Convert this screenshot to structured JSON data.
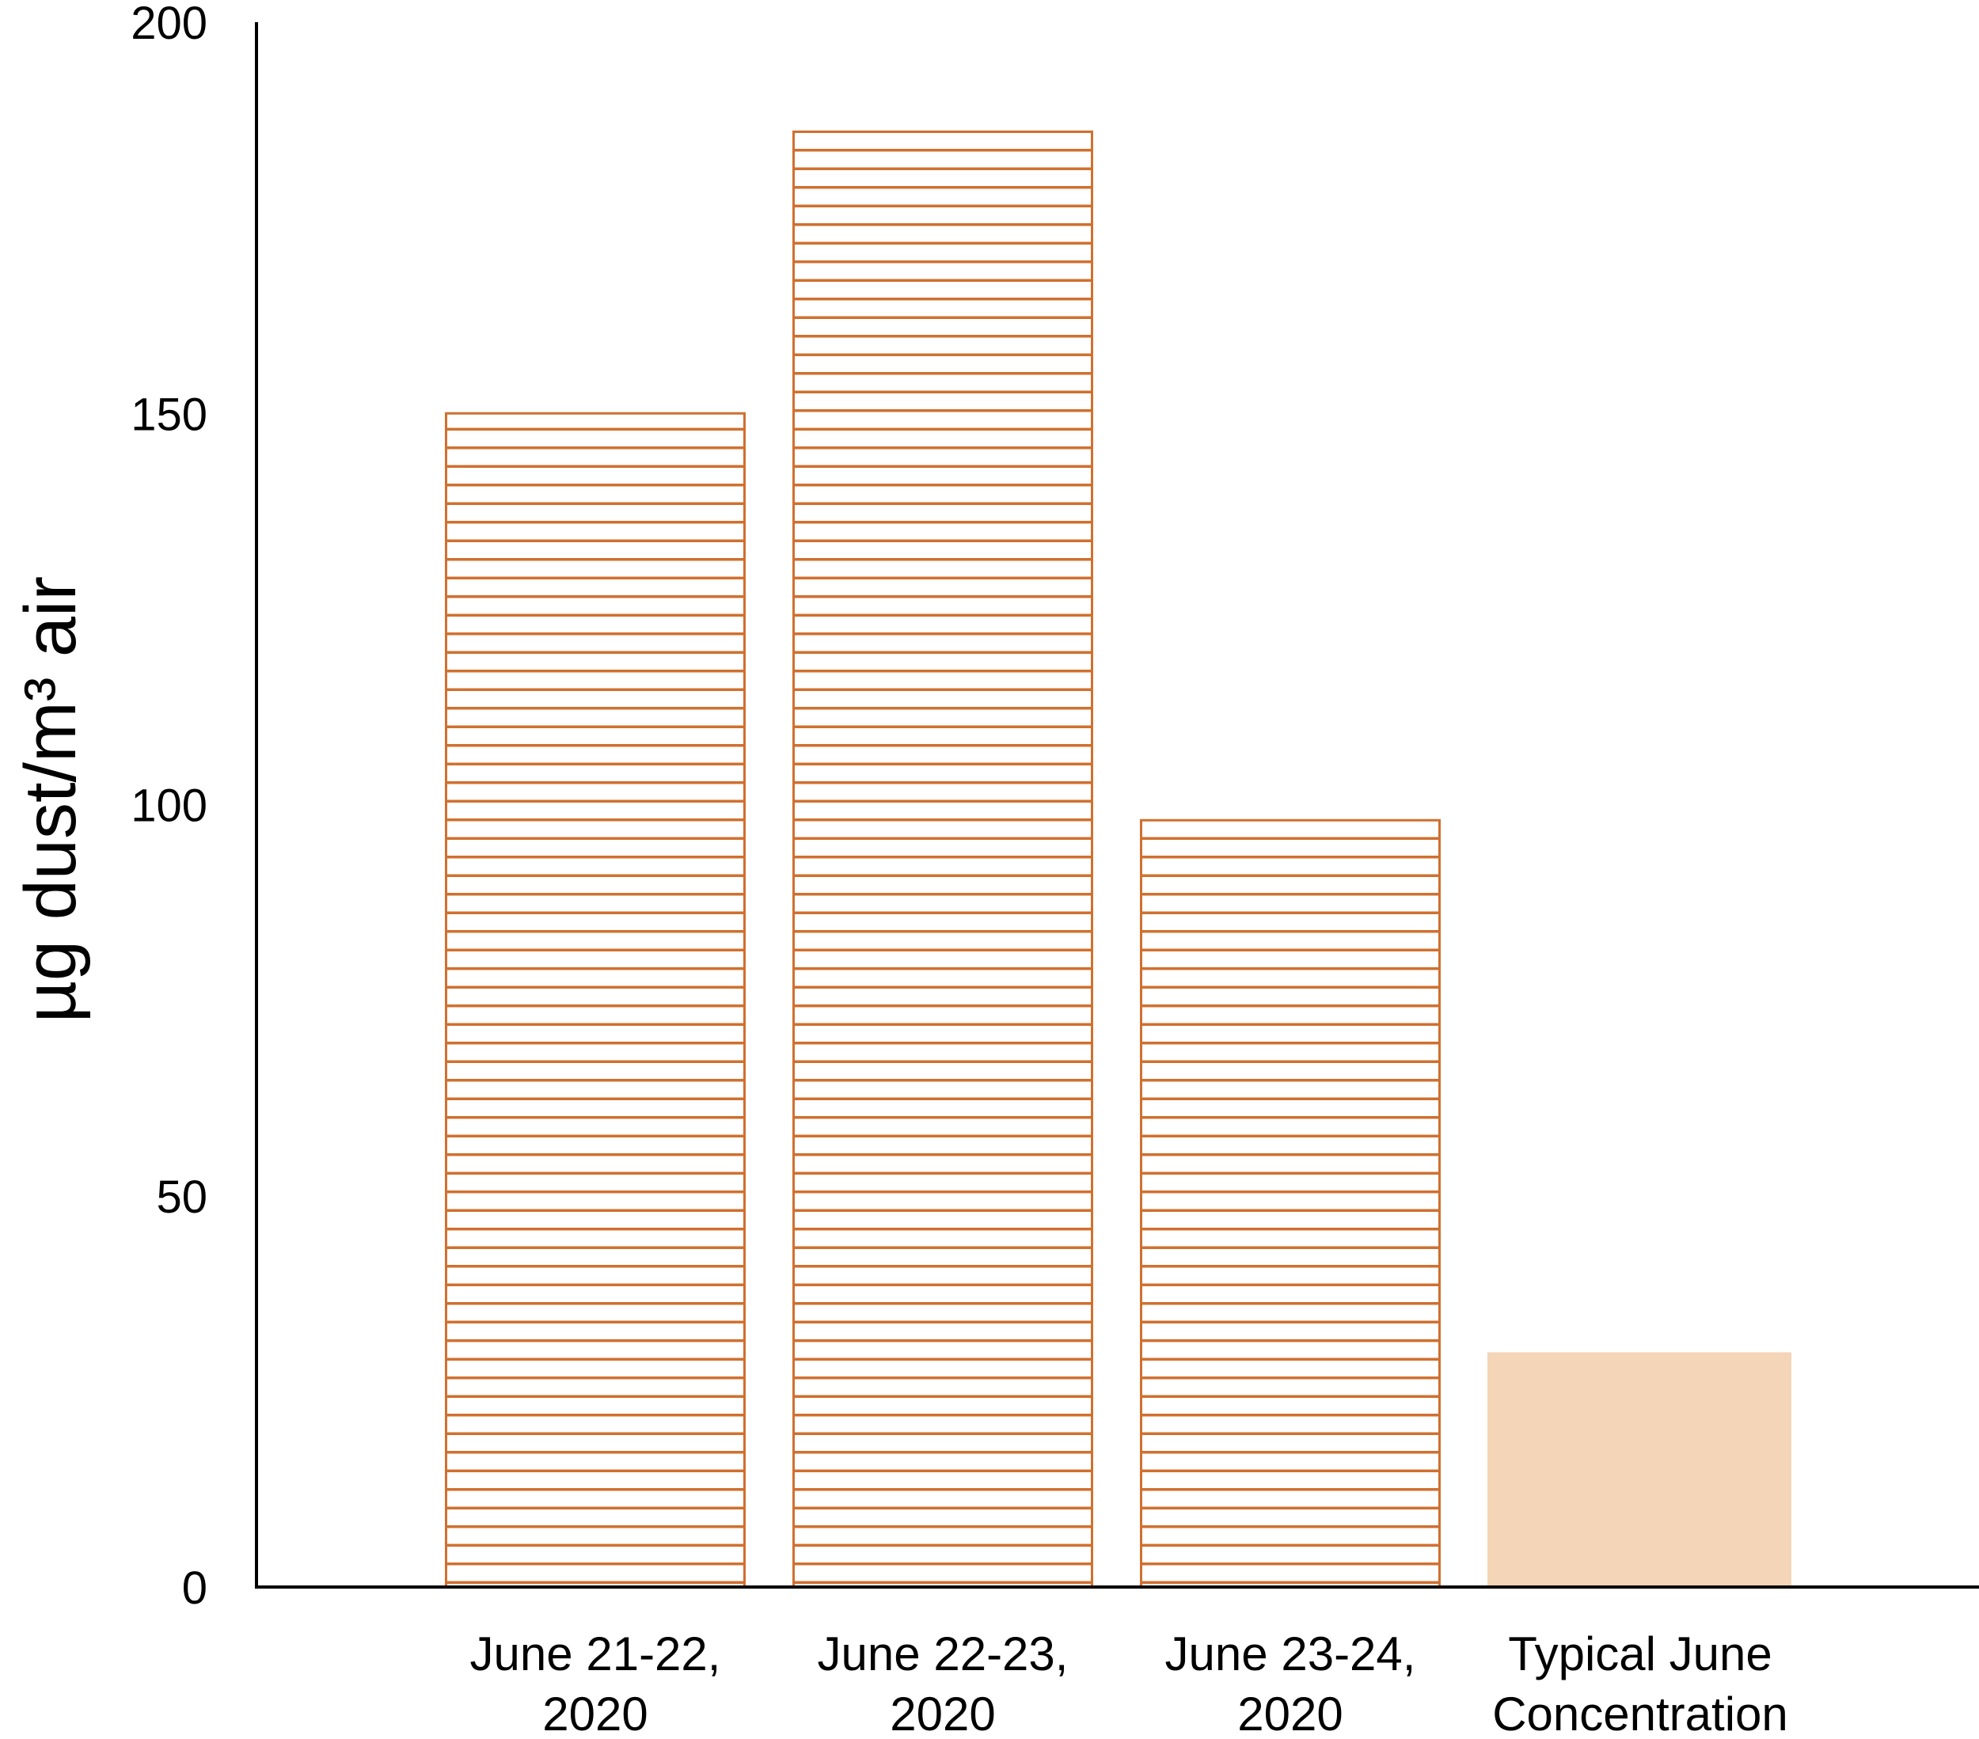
{
  "chart_data": {
    "type": "bar",
    "title": "",
    "xlabel": "",
    "ylabel": "µg dust/m³ air",
    "ylim": [
      0,
      200
    ],
    "yticks": [
      "0",
      "50",
      "100",
      "150",
      "200"
    ],
    "grid": false,
    "legend": "none",
    "categories": [
      [
        "June 21-22,",
        "2020"
      ],
      [
        "June 22-23,",
        "2020"
      ],
      [
        "June 23-24,",
        "2020"
      ],
      [
        "Typical June",
        "Concentration"
      ]
    ],
    "values": [
      150,
      186,
      98,
      30
    ],
    "fills": [
      "hatched",
      "hatched",
      "hatched",
      "solid"
    ],
    "colors": {
      "hatch_stroke": "#D0702F",
      "solid_fill": "#F4D5B7",
      "axis": "#000000"
    }
  }
}
